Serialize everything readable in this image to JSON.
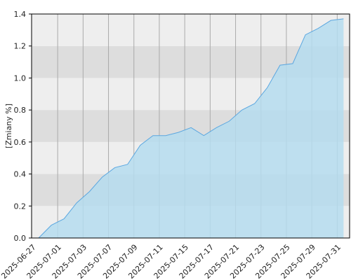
{
  "chart_data": {
    "type": "area",
    "y_label": "[Zmiany %]",
    "categories": [
      "2025-06-27",
      null,
      "2025-07-01",
      null,
      "2025-07-03",
      null,
      "2025-07-07",
      null,
      "2025-07-09",
      null,
      "2025-07-11",
      null,
      "2025-07-15",
      null,
      "2025-07-17",
      null,
      "2025-07-21",
      null,
      "2025-07-23",
      null,
      "2025-07-25",
      null,
      "2025-07-29",
      null,
      "2025-07-31"
    ],
    "values": [
      0,
      0.08,
      0.12,
      0.22,
      0.29,
      0.38,
      0.44,
      0.46,
      0.58,
      0.64,
      0.64,
      0.66,
      0.69,
      0.64,
      0.69,
      0.73,
      0.8,
      0.84,
      0.94,
      1.08,
      1.09,
      1.27,
      1.31,
      1.36,
      1.37
    ],
    "color": "#5ba7e0",
    "fill": "#b5dcee",
    "ylim": [
      0,
      1.4
    ],
    "yticks": [
      {
        "value": 0,
        "label": "0.0"
      },
      0.2,
      0.4,
      0.6,
      0.8,
      {
        "value": 1,
        "label": "1.0"
      },
      1.2,
      1.4
    ],
    "grid": true
  }
}
